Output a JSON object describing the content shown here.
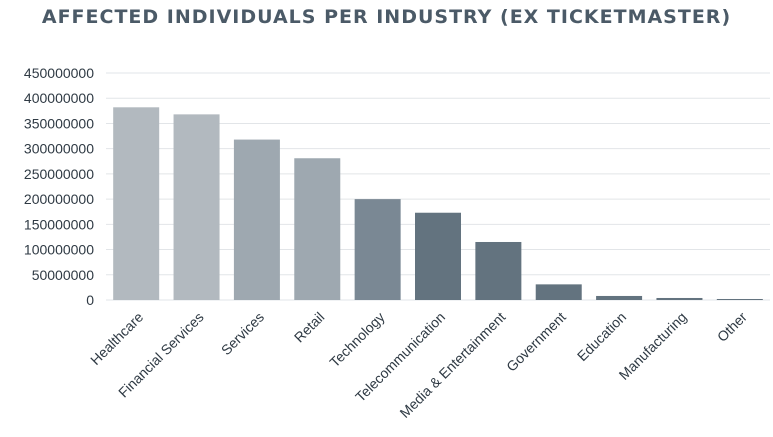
{
  "chart_data": {
    "type": "bar",
    "title": "AFFECTED INDIVIDUALS PER INDUSTRY (EX TICKETMASTER)",
    "xlabel": "",
    "ylabel": "",
    "ylim": [
      0,
      450000000
    ],
    "yticks": [
      "0",
      "50000000",
      "100000000",
      "150000000",
      "200000000",
      "250000000",
      "300000000",
      "350000000",
      "400000000",
      "450000000"
    ],
    "grid": true,
    "categories": [
      "Healthcare",
      "Financial Services",
      "Services",
      "Retail",
      "Technology",
      "Telecommunication",
      "Media & Entertainment",
      "Government",
      "Education",
      "Manufacturing",
      "Other"
    ],
    "values": [
      382000000,
      368000000,
      318000000,
      281000000,
      200000000,
      173000000,
      115000000,
      31000000,
      8000000,
      4000000,
      2000000
    ],
    "bar_colors": [
      "#b2b9bf",
      "#b2b9bf",
      "#9ea8b0",
      "#9ea8b0",
      "#7a8894",
      "#63737f",
      "#63737f",
      "#63737f",
      "#63737f",
      "#63737f",
      "#63737f"
    ]
  }
}
